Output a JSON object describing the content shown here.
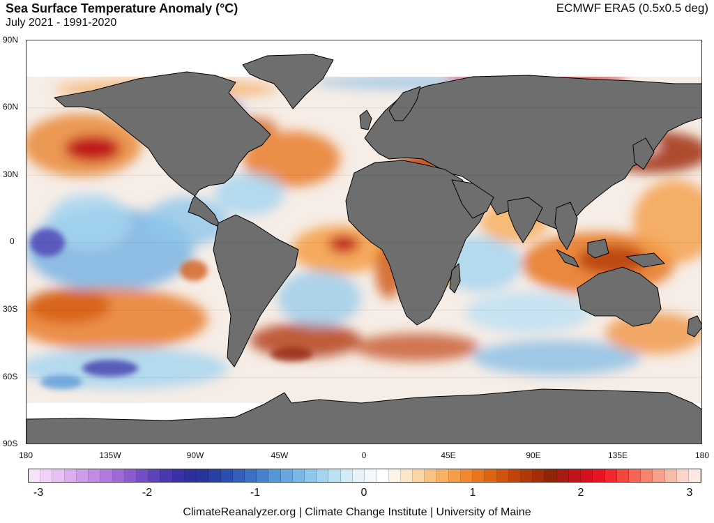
{
  "header": {
    "title": "Sea Surface Temperature Anomaly (°C)",
    "subtitle": "July 2021 - 1991-2020",
    "source": "ECMWF ERA5 (0.5x0.5 deg)"
  },
  "map": {
    "lat_labels": [
      "90N",
      "60N",
      "30N",
      "0",
      "30S",
      "60S",
      "90S"
    ],
    "lon_labels": [
      "180",
      "135W",
      "90W",
      "45W",
      "0",
      "45E",
      "90E",
      "135E",
      "180"
    ],
    "land_color": "#6e6e6e",
    "ice_color": "#ffffff"
  },
  "colorbar": {
    "tick_labels": [
      "-3",
      "-2",
      "-1",
      "0",
      "1",
      "2",
      "3"
    ],
    "min": -3,
    "max": 3,
    "colors": [
      "#f9e3fb",
      "#f2d2f8",
      "#e8c0f4",
      "#dcaef0",
      "#cf9ceb",
      "#c08ae5",
      "#b07ade",
      "#9e6ad6",
      "#8a5cce",
      "#744ec5",
      "#5e42bb",
      "#4a38b0",
      "#3a31a6",
      "#2f2f9c",
      "#28349e",
      "#2840a6",
      "#2c4eb0",
      "#335eba",
      "#3c70c4",
      "#4783cd",
      "#5596d6",
      "#66a8de",
      "#79b8e5",
      "#8ec7eb",
      "#a4d4f0",
      "#bce0f4",
      "#d3eaf7",
      "#e7f2fa",
      "#f4f8fb",
      "#ffffff",
      "#fdf3e6",
      "#fce5c8",
      "#fbd5a6",
      "#f9c383",
      "#f7b064",
      "#f59d47",
      "#f0892f",
      "#e8761f",
      "#dd6414",
      "#d0540e",
      "#c1450b",
      "#b1380a",
      "#a12d09",
      "#912309",
      "#a81a14",
      "#c0141a",
      "#d6101f",
      "#e81424",
      "#f2282e",
      "#f5453f",
      "#f66456",
      "#f7836f",
      "#f8a18a",
      "#f9bcaa",
      "#fbd5cb",
      "#fde8e4"
    ]
  },
  "footer": "ClimateReanalyzer.org | Climate Change Institute | University of Maine"
}
